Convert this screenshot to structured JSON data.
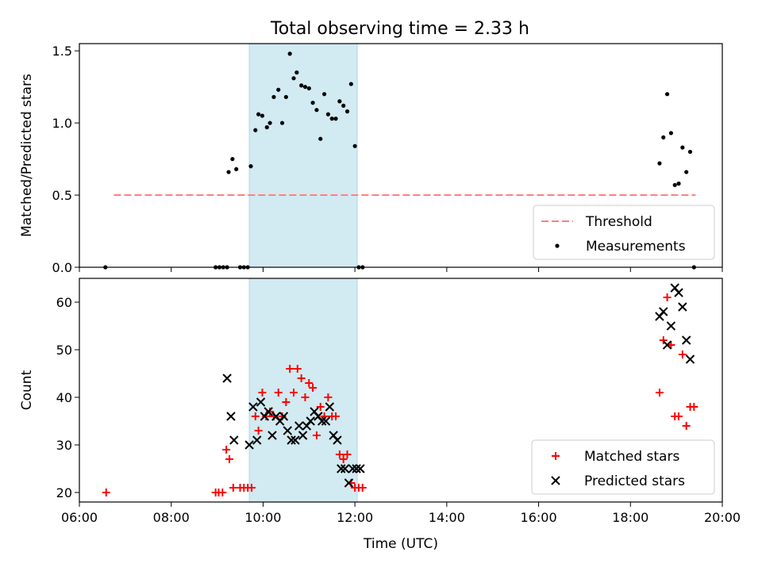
{
  "title": "Total observing time = 2.33 h",
  "colors": {
    "highlight": "#add8e6",
    "threshold": "#ff7f7f",
    "matched": "#ff0000",
    "predicted": "#000000",
    "measurement": "#000000"
  },
  "chart_data": [
    {
      "type": "scatter",
      "ylabel": "Matched/Predicted stars",
      "xlim": [
        "06:00",
        "20:00"
      ],
      "ylim": [
        0,
        1.55
      ],
      "yticks": [
        "0.0",
        "0.5",
        "1.0",
        "1.5"
      ],
      "ytick_values": [
        0,
        0.5,
        1.0,
        1.5
      ],
      "highlight_span": [
        "09:42",
        "12:03"
      ],
      "legend": {
        "position": "lower-right",
        "entries": [
          "Threshold",
          "Measurements"
        ]
      },
      "threshold": {
        "name": "Threshold",
        "y": 0.5,
        "x_range": [
          "06:45",
          "19:25"
        ]
      },
      "series": [
        {
          "name": "Measurements",
          "x": [
            "06:34",
            "08:58",
            "09:03",
            "09:08",
            "09:13",
            "09:15",
            "09:20",
            "09:25",
            "09:30",
            "09:35",
            "09:40",
            "09:44",
            "09:50",
            "09:54",
            "09:59",
            "10:05",
            "10:09",
            "10:14",
            "10:20",
            "10:25",
            "10:30",
            "10:35",
            "10:40",
            "10:44",
            "10:50",
            "10:55",
            "11:00",
            "11:05",
            "11:10",
            "11:15",
            "11:20",
            "11:25",
            "11:30",
            "11:35",
            "11:40",
            "11:45",
            "11:50",
            "11:55",
            "12:00",
            "12:05",
            "12:10",
            "18:38",
            "18:43",
            "18:48",
            "18:53",
            "18:58",
            "19:03",
            "19:08",
            "19:13",
            "19:18",
            "19:23"
          ],
          "y": [
            0,
            0,
            0,
            0,
            0,
            0.66,
            0.75,
            0.68,
            0,
            0,
            0,
            0.7,
            0.95,
            1.06,
            1.05,
            0.97,
            1.0,
            1.18,
            1.23,
            1.0,
            1.18,
            1.48,
            1.31,
            1.35,
            1.26,
            1.25,
            1.24,
            1.14,
            1.09,
            0.89,
            1.2,
            1.06,
            1.03,
            1.03,
            1.15,
            1.12,
            1.08,
            1.27,
            0.84,
            0,
            0,
            0.72,
            0.9,
            1.2,
            0.93,
            0.57,
            0.58,
            0.83,
            0.66,
            0.8,
            0
          ]
        }
      ]
    },
    {
      "type": "scatter",
      "xlabel": "Time (UTC)",
      "ylabel": "Count",
      "xlim": [
        "06:00",
        "20:00"
      ],
      "ylim": [
        18,
        65
      ],
      "xticks": [
        "06:00",
        "08:00",
        "10:00",
        "12:00",
        "14:00",
        "16:00",
        "18:00",
        "20:00"
      ],
      "yticks": [
        "20",
        "30",
        "40",
        "50",
        "60"
      ],
      "ytick_values": [
        20,
        30,
        40,
        50,
        60
      ],
      "highlight_span": [
        "09:42",
        "12:03"
      ],
      "legend": {
        "position": "lower-right",
        "entries": [
          "Matched stars",
          "Predicted stars"
        ]
      },
      "series": [
        {
          "name": "Matched stars",
          "x": [
            "06:35",
            "08:58",
            "09:02",
            "09:07",
            "09:12",
            "09:16",
            "09:21",
            "09:30",
            "09:35",
            "09:40",
            "09:45",
            "09:50",
            "09:54",
            "09:59",
            "10:04",
            "10:09",
            "10:14",
            "10:20",
            "10:25",
            "10:30",
            "10:35",
            "10:40",
            "10:45",
            "10:50",
            "10:55",
            "11:00",
            "11:05",
            "11:10",
            "11:15",
            "11:20",
            "11:25",
            "11:30",
            "11:35",
            "11:40",
            "11:45",
            "11:50",
            "11:55",
            "12:00",
            "12:05",
            "12:10",
            "18:38",
            "18:43",
            "18:48",
            "18:53",
            "18:58",
            "19:03",
            "19:08",
            "19:13",
            "19:18",
            "19:23"
          ],
          "y": [
            20,
            20,
            20,
            20,
            29,
            27,
            21,
            21,
            21,
            21,
            21,
            36,
            33,
            41,
            36,
            37,
            36,
            41,
            36,
            39,
            46,
            41,
            46,
            44,
            40,
            43,
            42,
            32,
            38,
            36,
            40,
            36,
            36,
            28,
            27,
            28,
            22,
            21,
            21,
            21,
            41,
            52,
            61,
            51,
            36,
            36,
            49,
            34,
            38,
            38
          ]
        },
        {
          "name": "Predicted stars",
          "x": [
            "09:13",
            "09:18",
            "09:22",
            "09:42",
            "09:47",
            "09:52",
            "09:57",
            "10:02",
            "10:07",
            "10:12",
            "10:17",
            "10:22",
            "10:27",
            "10:32",
            "10:37",
            "10:42",
            "10:47",
            "10:52",
            "10:57",
            "11:02",
            "11:07",
            "11:12",
            "11:17",
            "11:22",
            "11:27",
            "11:32",
            "11:37",
            "11:42",
            "11:47",
            "11:52",
            "11:57",
            "12:02",
            "12:07",
            "18:38",
            "18:43",
            "18:48",
            "18:53",
            "18:58",
            "19:03",
            "19:08",
            "19:13",
            "19:18"
          ],
          "y": [
            44,
            36,
            31,
            30,
            38,
            31,
            39,
            36,
            37,
            32,
            36,
            35,
            36,
            33,
            31,
            31,
            34,
            32,
            34,
            35,
            37,
            36,
            35,
            35,
            38,
            32,
            31,
            25,
            25,
            22,
            25,
            25,
            25,
            57,
            58,
            51,
            55,
            63,
            62,
            59,
            52,
            48
          ]
        }
      ]
    }
  ]
}
